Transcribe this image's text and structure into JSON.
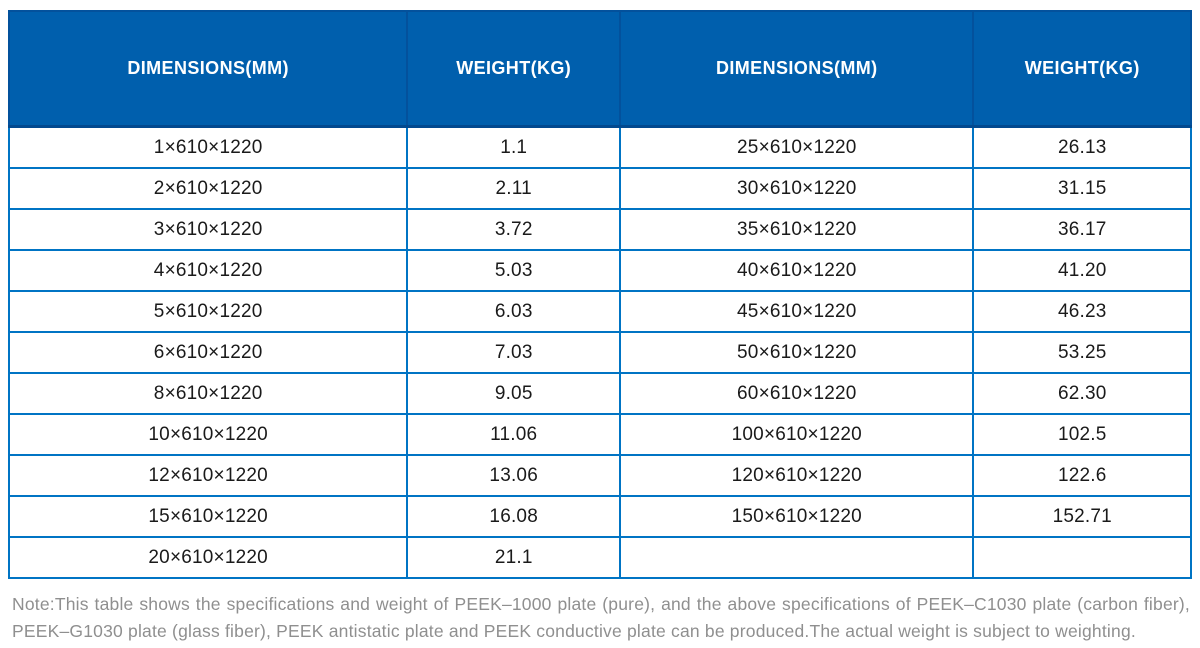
{
  "table": {
    "headers": [
      "DIMENSIONS(MM)",
      "WEIGHT(KG)",
      "DIMENSIONS(MM)",
      "WEIGHT(KG)"
    ],
    "rows": [
      [
        "1×610×1220",
        "1.1",
        "25×610×1220",
        "26.13"
      ],
      [
        "2×610×1220",
        "2.11",
        "30×610×1220",
        "31.15"
      ],
      [
        "3×610×1220",
        "3.72",
        "35×610×1220",
        "36.17"
      ],
      [
        "4×610×1220",
        "5.03",
        "40×610×1220",
        "41.20"
      ],
      [
        "5×610×1220",
        "6.03",
        "45×610×1220",
        "46.23"
      ],
      [
        "6×610×1220",
        "7.03",
        "50×610×1220",
        "53.25"
      ],
      [
        "8×610×1220",
        "9.05",
        "60×610×1220",
        "62.30"
      ],
      [
        "10×610×1220",
        "11.06",
        "100×610×1220",
        "102.5"
      ],
      [
        "12×610×1220",
        "13.06",
        "120×610×1220",
        "122.6"
      ],
      [
        "15×610×1220",
        "16.08",
        "150×610×1220",
        "152.71"
      ],
      [
        "20×610×1220",
        "21.1",
        "",
        ""
      ]
    ]
  },
  "note": "Note:This table shows the specifications and weight of PEEK–1000 plate (pure), and the above specifications of PEEK–C1030 plate (carbon fiber), PEEK–G1030 plate (glass fiber), PEEK antistatic plate and PEEK conductive plate can be produced.The actual weight is subject to weighting.",
  "colors": {
    "header_bg": "#005FAD",
    "header_divider": "#03519C",
    "body_border": "#0074C4",
    "body_text": "#1a1a1a",
    "note_text": "#8F8F8F"
  }
}
